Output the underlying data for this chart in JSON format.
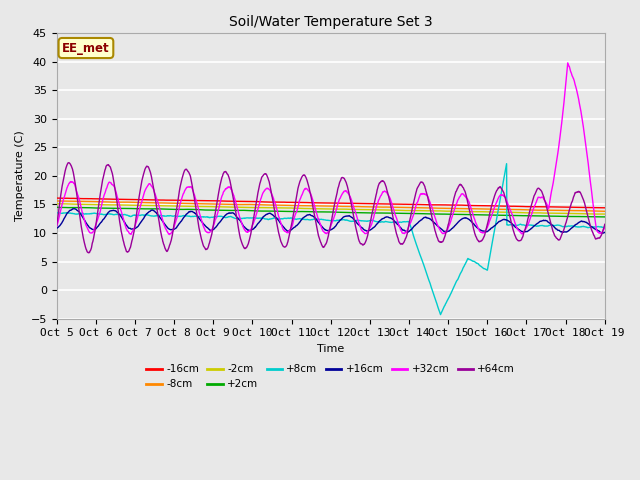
{
  "title": "Soil/Water Temperature Set 3",
  "xlabel": "Time",
  "ylabel": "Temperature (C)",
  "ylim": [
    -5,
    45
  ],
  "xlim": [
    0,
    14
  ],
  "xtick_labels": [
    "Oct 5",
    "Oct 6",
    "Oct 7",
    "Oct 8",
    "Oct 9",
    "Oct 10",
    "Oct 11",
    "Oct 12",
    "Oct 13",
    "Oct 14",
    "Oct 15",
    "Oct 16",
    "Oct 17",
    "Oct 18",
    "Oct 19"
  ],
  "background_color": "#e8e8e8",
  "plot_bg_color": "#e8e8e8",
  "grid_color": "#ffffff",
  "annotation_text": "EE_met",
  "annotation_color": "#8b0000",
  "annotation_bg": "#ffffcc",
  "series": {
    "neg16cm": {
      "label": "-16cm",
      "color": "#ff0000"
    },
    "neg8cm": {
      "label": "-8cm",
      "color": "#ff8800"
    },
    "neg2cm": {
      "label": "-2cm",
      "color": "#cccc00"
    },
    "pos2cm": {
      "label": "+2cm",
      "color": "#00aa00"
    },
    "pos8cm": {
      "label": "+8cm",
      "color": "#00cccc"
    },
    "pos16cm": {
      "label": "+16cm",
      "color": "#000099"
    },
    "pos32cm": {
      "label": "+32cm",
      "color": "#ff00ff"
    },
    "pos64cm": {
      "label": "+64cm",
      "color": "#990099"
    }
  }
}
